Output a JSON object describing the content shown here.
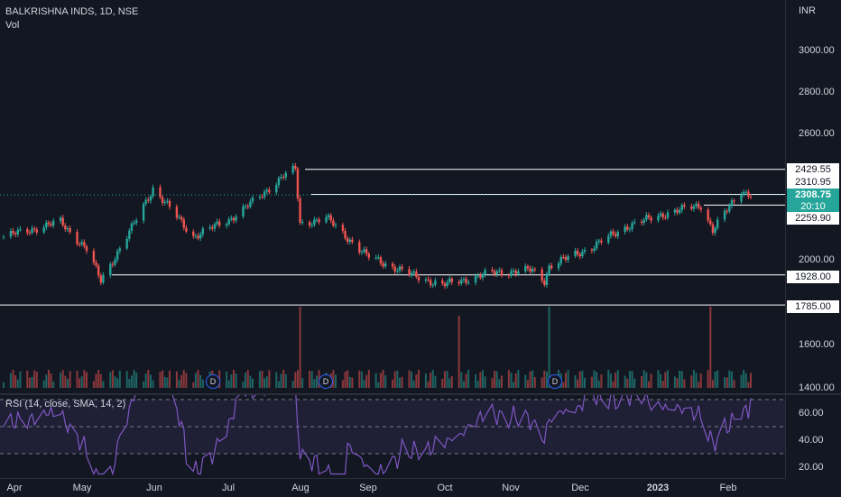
{
  "header": {
    "symbol_line": "BALKRISHNA INDS, 1D, NSE",
    "volume_label": "Vol"
  },
  "currency": "INR",
  "rsi": {
    "label": "RSI (14, close, SMA, 14, 2)",
    "upper": 70,
    "lower": 30
  },
  "price_ticks": [
    "3000.00",
    "2800.00",
    "2600.00",
    "2000.00",
    "1600.00",
    "1400.00"
  ],
  "rsi_ticks": [
    "60.00",
    "40.00",
    "20.00"
  ],
  "time_labels": [
    {
      "label": "Apr",
      "bold": false
    },
    {
      "label": "May",
      "bold": false
    },
    {
      "label": "Jun",
      "bold": false
    },
    {
      "label": "Jul",
      "bold": false
    },
    {
      "label": "Aug",
      "bold": false
    },
    {
      "label": "Sep",
      "bold": false
    },
    {
      "label": "Oct",
      "bold": false
    },
    {
      "label": "Nov",
      "bold": false
    },
    {
      "label": "Dec",
      "bold": false
    },
    {
      "label": "2023",
      "bold": true
    },
    {
      "label": "Feb",
      "bold": false
    }
  ],
  "levels": [
    "2429.55",
    "2310.95",
    "2259.90",
    "1928.00",
    "1785.00"
  ],
  "last_price": "2308.75",
  "countdown": "20:10",
  "dividend_marker": "D",
  "colors": {
    "up": "#26a69a",
    "down": "#ef5350",
    "rsi_line": "#7e57c2",
    "background": "#131722"
  },
  "chart_data": {
    "type": "candlestick",
    "title": "BALKRISHNA INDS, 1D, NSE",
    "ylabel": "INR",
    "ylim": [
      1400,
      3150
    ],
    "grid": false,
    "x_range": [
      "2022-04-01",
      "2023-02-10"
    ],
    "key_points": [
      {
        "date": "2022-04-01",
        "close": 2110
      },
      {
        "date": "2022-04-25",
        "close": 2180
      },
      {
        "date": "2022-05-06",
        "close": 2050
      },
      {
        "date": "2022-05-12",
        "close": 1900
      },
      {
        "date": "2022-05-25",
        "close": 2150
      },
      {
        "date": "2022-06-03",
        "close": 2340
      },
      {
        "date": "2022-06-20",
        "close": 2110
      },
      {
        "date": "2022-07-05",
        "close": 2190
      },
      {
        "date": "2022-07-18",
        "close": 2300
      },
      {
        "date": "2022-07-28",
        "close": 2400
      },
      {
        "date": "2022-08-02",
        "close": 2429.55
      },
      {
        "date": "2022-08-04",
        "close": 2170
      },
      {
        "date": "2022-08-15",
        "close": 2200
      },
      {
        "date": "2022-09-01",
        "close": 2020
      },
      {
        "date": "2022-09-20",
        "close": 1928
      },
      {
        "date": "2022-10-03",
        "close": 1880
      },
      {
        "date": "2022-10-25",
        "close": 1940
      },
      {
        "date": "2022-11-10",
        "close": 1950
      },
      {
        "date": "2022-11-15",
        "close": 1900
      },
      {
        "date": "2022-11-17",
        "close": 1970
      },
      {
        "date": "2022-12-05",
        "close": 2060
      },
      {
        "date": "2022-12-20",
        "close": 2160
      },
      {
        "date": "2023-01-05",
        "close": 2220
      },
      {
        "date": "2023-01-20",
        "close": 2260
      },
      {
        "date": "2023-01-25",
        "close": 2140
      },
      {
        "date": "2023-02-06",
        "close": 2330
      },
      {
        "date": "2023-02-10",
        "close": 2308.75
      }
    ],
    "volume_spikes": [
      "2022-08-04",
      "2022-10-10",
      "2022-11-17",
      "2023-01-24"
    ],
    "horizontal_levels": [
      2429.55,
      2310.95,
      2259.9,
      1928.0,
      1785.0
    ],
    "last": 2308.75,
    "rsi_range": [
      15,
      80
    ]
  }
}
